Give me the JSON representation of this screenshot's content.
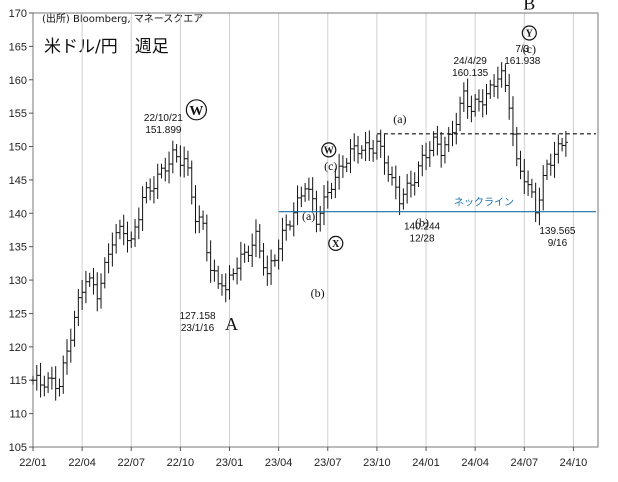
{
  "header": {
    "source": "(出所) Bloomberg, マネースクエア",
    "title": "米ドル/円　週足"
  },
  "chart_data": {
    "type": "ohlc",
    "ylim": [
      105,
      170
    ],
    "yticks": [
      105,
      110,
      115,
      120,
      125,
      130,
      135,
      140,
      145,
      150,
      155,
      160,
      165,
      170
    ],
    "xticks": [
      "22/01",
      "22/04",
      "22/07",
      "22/10",
      "23/01",
      "23/04",
      "23/07",
      "23/10",
      "24/01",
      "24/04",
      "24/07",
      "24/10"
    ],
    "x_start_label": "22/01",
    "grid": "vertical",
    "keypoints": [
      {
        "w": 0,
        "p": 115.0
      },
      {
        "w": 2,
        "p": 114.0
      },
      {
        "w": 7,
        "p": 115.0
      },
      {
        "w": 10,
        "p": 122.0
      },
      {
        "w": 14,
        "p": 130.0
      },
      {
        "w": 17,
        "p": 128.5
      },
      {
        "w": 21,
        "p": 136.0
      },
      {
        "w": 24,
        "p": 137.0
      },
      {
        "w": 26,
        "p": 135.5
      },
      {
        "w": 29,
        "p": 143.0
      },
      {
        "w": 31,
        "p": 143.5
      },
      {
        "w": 34,
        "p": 145.5
      },
      {
        "w": 37,
        "p": 149.0
      },
      {
        "w": 40,
        "p": 148.5
      },
      {
        "w": 41,
        "p": 146.0
      },
      {
        "w": 43,
        "p": 139.0
      },
      {
        "w": 45,
        "p": 137.5
      },
      {
        "w": 47,
        "p": 132.0
      },
      {
        "w": 49,
        "p": 130.0
      },
      {
        "w": 50,
        "p": 130.5
      },
      {
        "w": 51,
        "p": 128.5
      },
      {
        "w": 53,
        "p": 131.0
      },
      {
        "w": 56,
        "p": 133.5
      },
      {
        "w": 59,
        "p": 137.0
      },
      {
        "w": 61,
        "p": 133.0
      },
      {
        "w": 62,
        "p": 130.5
      },
      {
        "w": 64,
        "p": 133.0
      },
      {
        "w": 67,
        "p": 138.0
      },
      {
        "w": 70,
        "p": 142.0
      },
      {
        "w": 72,
        "p": 144.5
      },
      {
        "w": 74,
        "p": 141.0
      },
      {
        "w": 75,
        "p": 138.5
      },
      {
        "w": 77,
        "p": 141.5
      },
      {
        "w": 79,
        "p": 145.0
      },
      {
        "w": 82,
        "p": 147.5
      },
      {
        "w": 85,
        "p": 149.0
      },
      {
        "w": 87,
        "p": 149.5
      },
      {
        "w": 90,
        "p": 150.5
      },
      {
        "w": 91,
        "p": 151.0
      },
      {
        "w": 93,
        "p": 148.0
      },
      {
        "w": 95,
        "p": 144.0
      },
      {
        "w": 97,
        "p": 142.0
      },
      {
        "w": 98,
        "p": 143.0
      },
      {
        "w": 100,
        "p": 145.0
      },
      {
        "w": 103,
        "p": 148.0
      },
      {
        "w": 106,
        "p": 150.0
      },
      {
        "w": 108,
        "p": 149.5
      },
      {
        "w": 110,
        "p": 151.5
      },
      {
        "w": 112,
        "p": 154.5
      },
      {
        "w": 114,
        "p": 157.5
      },
      {
        "w": 116,
        "p": 155.0
      },
      {
        "w": 118,
        "p": 156.5
      },
      {
        "w": 121,
        "p": 159.0
      },
      {
        "w": 123,
        "p": 161.0
      },
      {
        "w": 124,
        "p": 160.5
      },
      {
        "w": 126,
        "p": 156.0
      },
      {
        "w": 128,
        "p": 147.0
      },
      {
        "w": 130,
        "p": 146.0
      },
      {
        "w": 132,
        "p": 143.0
      },
      {
        "w": 133,
        "p": 141.0
      },
      {
        "w": 134,
        "p": 142.5
      },
      {
        "w": 136,
        "p": 146.5
      },
      {
        "w": 139,
        "p": 149.5
      },
      {
        "w": 141,
        "p": 152.0
      }
    ],
    "hlines": [
      {
        "name": "neckline",
        "value": 140.244,
        "start": "23/04",
        "color": "#1a6fa8",
        "dash": false
      },
      {
        "name": "resistance",
        "value": 151.899,
        "start": "23/10",
        "color": "#111111",
        "dash": true
      }
    ],
    "neck_label": "ネックライン",
    "annotations": {
      "w_label": {
        "text": "W",
        "x": "22/10",
        "y": 155.5
      },
      "peak_2210": {
        "lines": [
          "22/10/21",
          "151.899"
        ],
        "x": "22/10",
        "y": 151.899
      },
      "low_2301": {
        "lines": [
          "127.158",
          "23/1/16"
        ],
        "x": "23/01",
        "y": 127.158
      },
      "a_big": {
        "text": "A",
        "x": "23/01",
        "y": 122.5
      },
      "a1": {
        "text": "(a)",
        "x": "23/04",
        "y": 139.0
      },
      "b1": {
        "text": "(b)",
        "x": "23/04",
        "y": 127.5
      },
      "w_small": {
        "text": "W",
        "x": "23/07",
        "y": 149.5
      },
      "c1": {
        "text": "(c)",
        "x": "23/07",
        "y": 146.5
      },
      "x_small": {
        "text": "X",
        "x": "23/07",
        "y": 135.5
      },
      "a2": {
        "text": "(a)",
        "x": "23/10",
        "y": 153.5
      },
      "b2": {
        "text": "(b)",
        "x": "24/01",
        "y": 138.0
      },
      "low_2312": {
        "lines": [
          "140.244",
          "12/28"
        ],
        "x": "24/01",
        "y": 140.244
      },
      "high_2404": {
        "lines": [
          "24/4/29",
          "160.135"
        ],
        "x": "24/04",
        "y": 160.135
      },
      "high_2407": {
        "lines": [
          "7/3",
          "161.938"
        ],
        "x": "24/07",
        "y": 161.938
      },
      "b_big": {
        "text": "B",
        "x": "24/07",
        "y": 170.5
      },
      "y_small": {
        "text": "Y",
        "x": "24/07",
        "y": 167.0
      },
      "c2": {
        "text": "(c)",
        "x": "24/07",
        "y": 164.0
      },
      "low_2409": {
        "lines": [
          "139.565",
          "9/16"
        ],
        "x": "24/10",
        "y": 139.565
      }
    }
  }
}
